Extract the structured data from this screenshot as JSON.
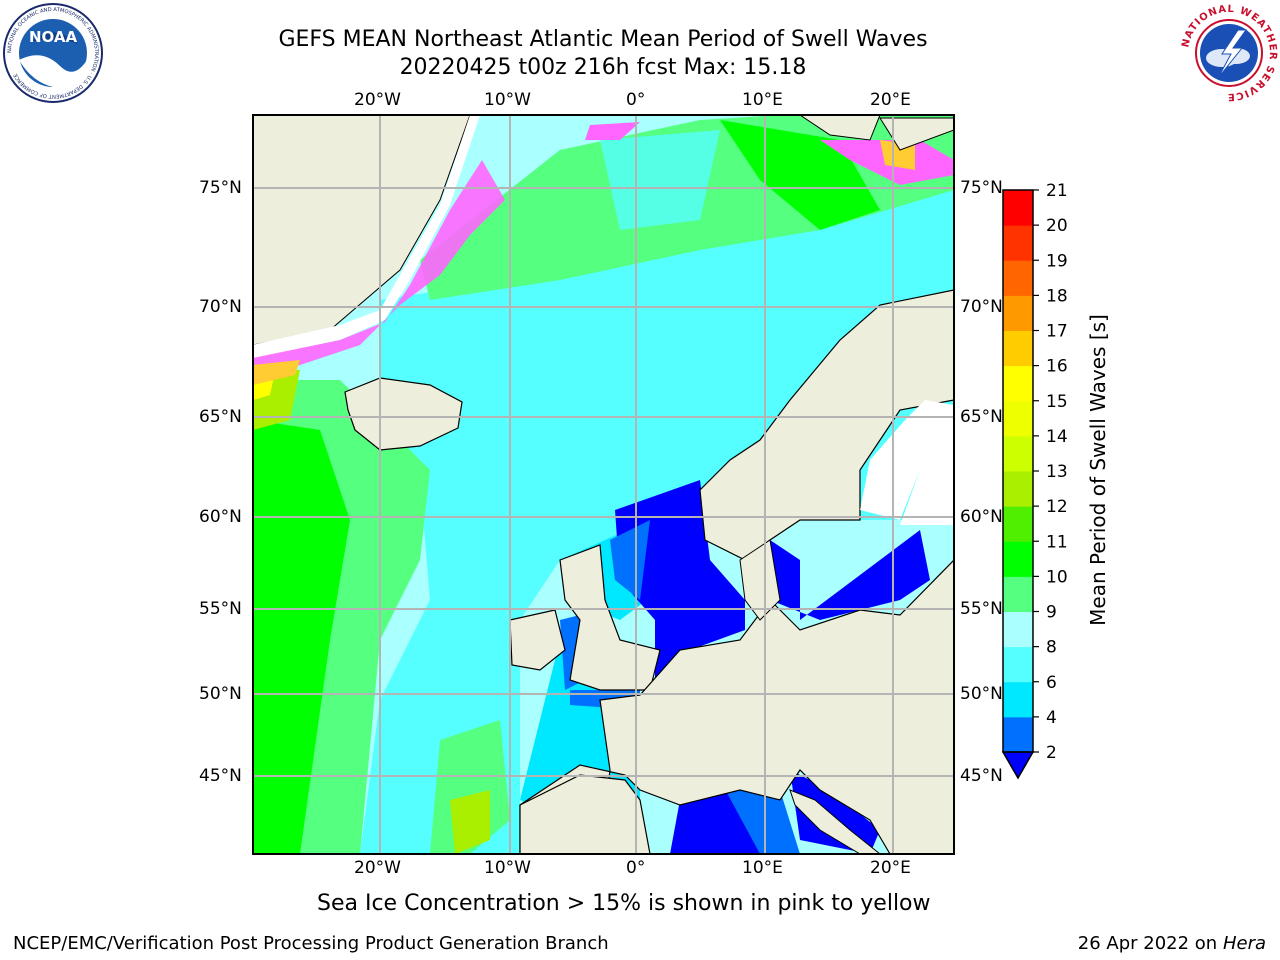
{
  "header": {
    "title_line1": "GEFS MEAN Northeast Atlantic Mean Period of Swell Waves",
    "title_line2": "20220425 t00z 216h fcst   Max: 15.18"
  },
  "logos": {
    "left": {
      "name": "NOAA",
      "ring_text": "NATIONAL OCEANIC AND ATMOSPHERIC ADMINISTRATION · U.S. DEPARTMENT OF COMMERCE"
    },
    "right": {
      "name": "NATIONAL WEATHER SERVICE"
    }
  },
  "map": {
    "lon_labels": [
      "20°W",
      "10°W",
      "0°",
      "10°E",
      "20°E"
    ],
    "lat_labels": [
      "75°N",
      "70°N",
      "65°N",
      "60°N",
      "55°N",
      "50°N",
      "45°N"
    ],
    "grid": true,
    "colors": {
      "land": "#eeeedc",
      "coast": "#000000",
      "grid": "#b4b4b4",
      "sea_ice": "#ff66ff",
      "sea_ice_edge": "#ffcc33"
    }
  },
  "colorbar": {
    "label": "Mean Period of Swell Waves [s]",
    "ticks": [
      "2",
      "4",
      "6",
      "8",
      "9",
      "10",
      "11",
      "12",
      "13",
      "14",
      "15",
      "16",
      "17",
      "18",
      "19",
      "20",
      "21"
    ],
    "colors": [
      "#0000ff",
      "#0070ff",
      "#00e8ff",
      "#55ffff",
      "#aaffff",
      "#55ff7f",
      "#00ff00",
      "#50ee00",
      "#aaee00",
      "#ccff00",
      "#eeff00",
      "#ffff00",
      "#ffcc00",
      "#ff9900",
      "#ff6600",
      "#ff3300",
      "#ff0000"
    ],
    "extend": "min"
  },
  "note": "Sea Ice Concentration > 15% is shown in pink to yellow",
  "footer": {
    "left": "NCEP/EMC/Verification Post Processing Product Generation Branch",
    "right_date": "26 Apr 2022 on ",
    "right_host": "Hera"
  }
}
